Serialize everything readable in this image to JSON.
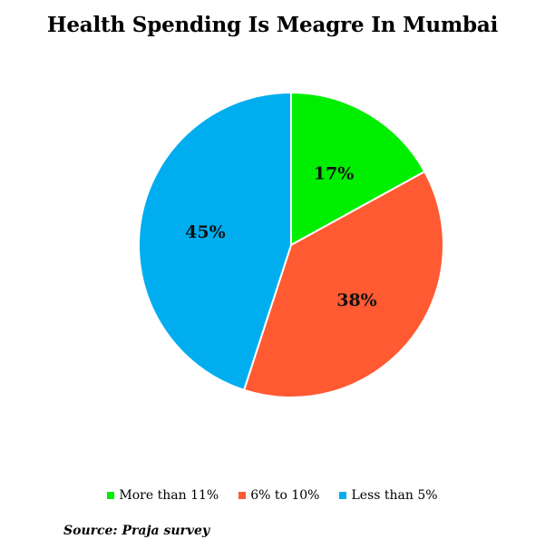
{
  "chart_data": {
    "type": "pie",
    "title": "Health Spending Is Meagre In Mumbai",
    "categories": [
      "More than 11%",
      "6% to 10%",
      "Less than 5%"
    ],
    "values": [
      17,
      38,
      45
    ],
    "labels": [
      "17%",
      "38%",
      "45%"
    ],
    "colors": [
      "#00ee00",
      "#ff5a32",
      "#00aeef"
    ],
    "legend_position": "bottom"
  },
  "source": "Source: Praja survey"
}
